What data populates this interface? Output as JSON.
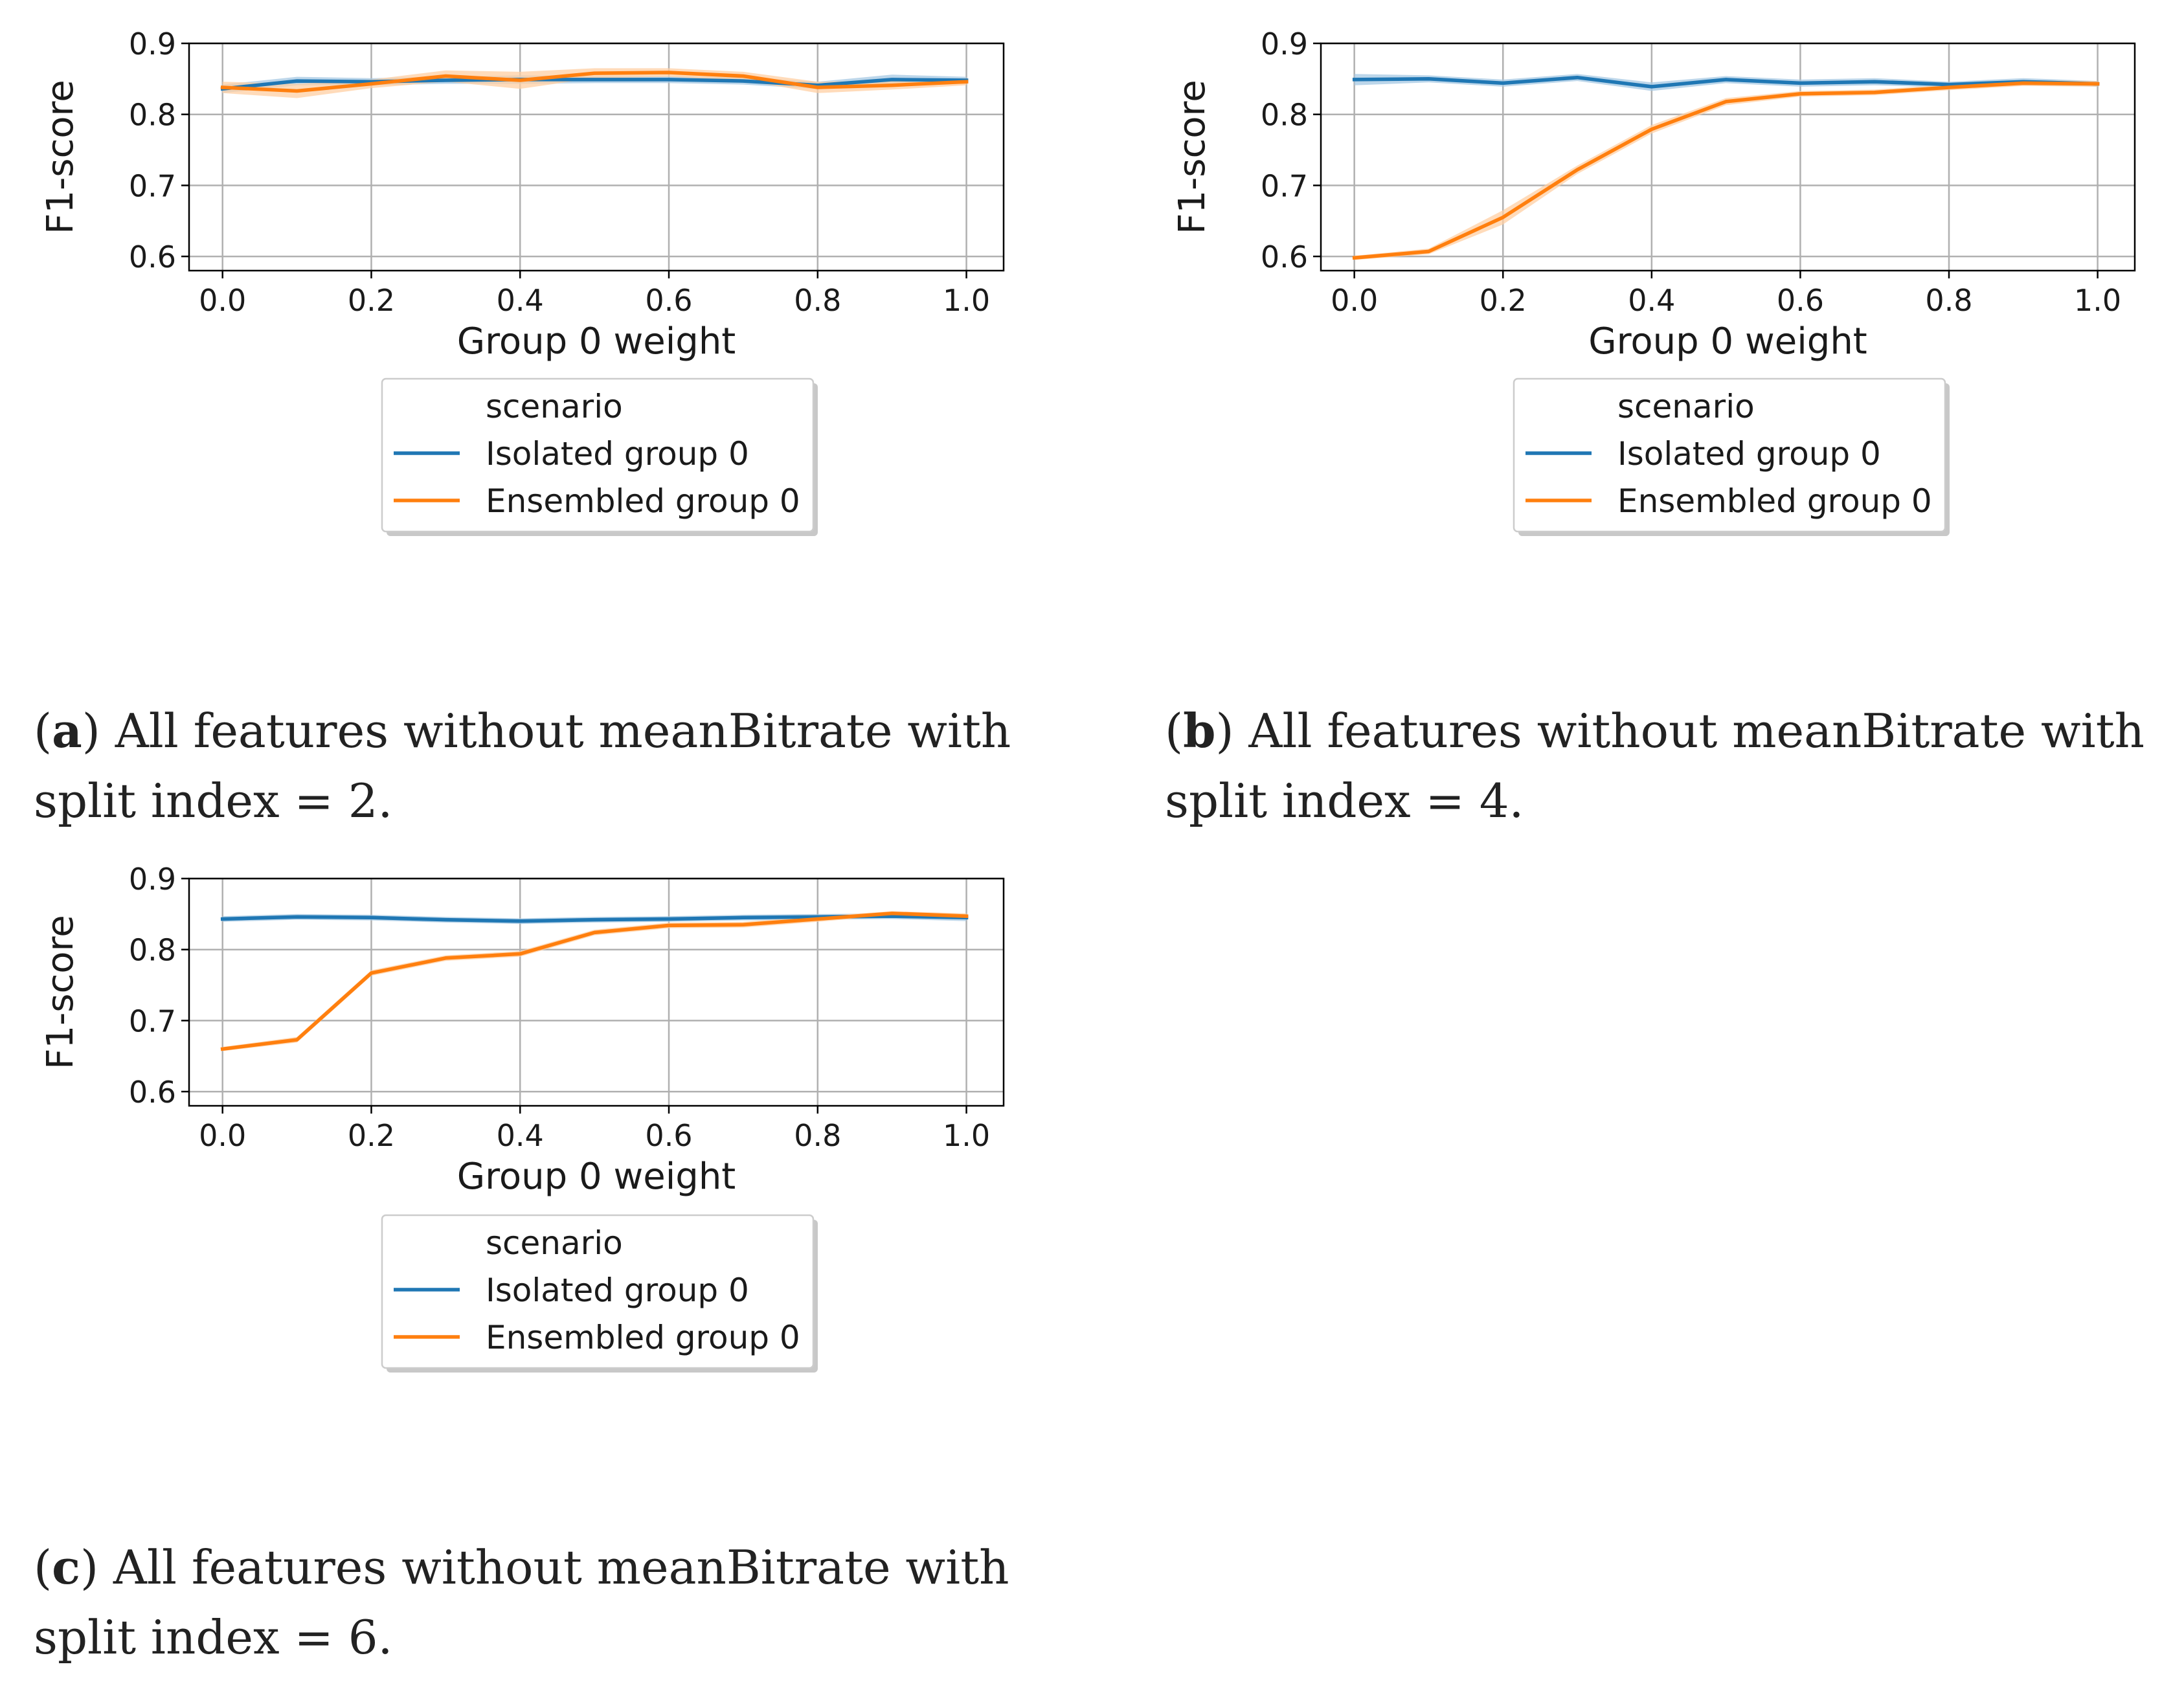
{
  "colors": {
    "isolated": "#1f77b4",
    "ensembled": "#ff7f0e",
    "isolated_band": "#a6c8e3",
    "ensembled_band": "#ffcfa3",
    "grid": "#b0b0b0",
    "frame": "#000000"
  },
  "chart_data": [
    {
      "type": "line",
      "panel": "a",
      "xlabel": "Group 0 weight",
      "ylabel": "F1-score",
      "x": [
        0.0,
        0.1,
        0.2,
        0.3,
        0.4,
        0.5,
        0.6,
        0.7,
        0.8,
        0.9,
        1.0
      ],
      "xlim": [
        -0.045,
        1.05
      ],
      "ylim": [
        0.58,
        0.9
      ],
      "xticks": [
        0.0,
        0.2,
        0.4,
        0.6,
        0.8,
        1.0
      ],
      "xtick_labels": [
        "0.0",
        "0.2",
        "0.4",
        "0.6",
        "0.8",
        "1.0"
      ],
      "yticks": [
        0.6,
        0.7,
        0.8,
        0.9
      ],
      "ytick_labels": [
        "0.6",
        "0.7",
        "0.8",
        "0.9"
      ],
      "grid": true,
      "legend": {
        "title": "scenario",
        "position": "below",
        "entries": [
          "Isolated group 0",
          "Ensembled group 0"
        ]
      },
      "series": [
        {
          "name": "Isolated group 0",
          "values": [
            0.836,
            0.847,
            0.846,
            0.848,
            0.849,
            0.849,
            0.849,
            0.847,
            0.841,
            0.849,
            0.848
          ],
          "band": [
            0.006,
            0.006,
            0.005,
            0.005,
            0.006,
            0.005,
            0.005,
            0.005,
            0.005,
            0.007,
            0.005
          ]
        },
        {
          "name": "Ensembled group 0",
          "values": [
            0.838,
            0.833,
            0.843,
            0.854,
            0.848,
            0.858,
            0.859,
            0.854,
            0.838,
            0.841,
            0.846
          ],
          "band": [
            0.008,
            0.01,
            0.006,
            0.008,
            0.012,
            0.007,
            0.006,
            0.006,
            0.008,
            0.006,
            0.005
          ]
        }
      ]
    },
    {
      "type": "line",
      "panel": "b",
      "xlabel": "Group 0 weight",
      "ylabel": "F1-score",
      "x": [
        0.0,
        0.1,
        0.2,
        0.3,
        0.4,
        0.5,
        0.6,
        0.7,
        0.8,
        0.9,
        1.0
      ],
      "xlim": [
        -0.045,
        1.05
      ],
      "ylim": [
        0.58,
        0.9
      ],
      "xticks": [
        0.0,
        0.2,
        0.4,
        0.6,
        0.8,
        1.0
      ],
      "xtick_labels": [
        "0.0",
        "0.2",
        "0.4",
        "0.6",
        "0.8",
        "1.0"
      ],
      "yticks": [
        0.6,
        0.7,
        0.8,
        0.9
      ],
      "ytick_labels": [
        "0.6",
        "0.7",
        "0.8",
        "0.9"
      ],
      "grid": true,
      "legend": {
        "title": "scenario",
        "position": "below",
        "entries": [
          "Isolated group 0",
          "Ensembled group 0"
        ]
      },
      "series": [
        {
          "name": "Isolated group 0",
          "values": [
            0.849,
            0.85,
            0.844,
            0.852,
            0.839,
            0.849,
            0.844,
            0.846,
            0.842,
            0.846,
            0.843
          ],
          "band": [
            0.008,
            0.005,
            0.005,
            0.005,
            0.006,
            0.005,
            0.005,
            0.005,
            0.004,
            0.005,
            0.004
          ]
        },
        {
          "name": "Ensembled group 0",
          "values": [
            0.598,
            0.607,
            0.655,
            0.722,
            0.779,
            0.818,
            0.829,
            0.831,
            0.838,
            0.844,
            0.843
          ],
          "band": [
            0.003,
            0.004,
            0.01,
            0.006,
            0.006,
            0.005,
            0.004,
            0.004,
            0.004,
            0.004,
            0.004
          ]
        }
      ]
    },
    {
      "type": "line",
      "panel": "c",
      "xlabel": "Group 0 weight",
      "ylabel": "F1-score",
      "x": [
        0.0,
        0.1,
        0.2,
        0.3,
        0.4,
        0.5,
        0.6,
        0.7,
        0.8,
        0.9,
        1.0
      ],
      "xlim": [
        -0.045,
        1.05
      ],
      "ylim": [
        0.58,
        0.9
      ],
      "xticks": [
        0.0,
        0.2,
        0.4,
        0.6,
        0.8,
        1.0
      ],
      "xtick_labels": [
        "0.0",
        "0.2",
        "0.4",
        "0.6",
        "0.8",
        "1.0"
      ],
      "yticks": [
        0.6,
        0.7,
        0.8,
        0.9
      ],
      "ytick_labels": [
        "0.6",
        "0.7",
        "0.8",
        "0.9"
      ],
      "grid": true,
      "legend": {
        "title": "scenario",
        "position": "below",
        "entries": [
          "Isolated group 0",
          "Ensembled group 0"
        ]
      },
      "series": [
        {
          "name": "Isolated group 0",
          "values": [
            0.843,
            0.846,
            0.845,
            0.842,
            0.84,
            0.842,
            0.843,
            0.845,
            0.846,
            0.847,
            0.845
          ],
          "band": [
            0.004,
            0.004,
            0.004,
            0.004,
            0.004,
            0.004,
            0.004,
            0.004,
            0.004,
            0.004,
            0.005
          ]
        },
        {
          "name": "Ensembled group 0",
          "values": [
            0.66,
            0.673,
            0.767,
            0.788,
            0.794,
            0.824,
            0.834,
            0.835,
            0.843,
            0.851,
            0.847
          ],
          "band": [
            0.003,
            0.004,
            0.004,
            0.004,
            0.004,
            0.004,
            0.004,
            0.004,
            0.004,
            0.003,
            0.004
          ]
        }
      ]
    }
  ],
  "captions": [
    {
      "letter": "a",
      "open": "(",
      "close": ")",
      "text": " All features without meanBitrate with split index = 2."
    },
    {
      "letter": "b",
      "open": "(",
      "close": ")",
      "text": " All features without meanBitrate with split index = 4."
    },
    {
      "letter": "c",
      "open": "(",
      "close": ")",
      "text": " All features without meanBitrate with split index = 6."
    }
  ]
}
